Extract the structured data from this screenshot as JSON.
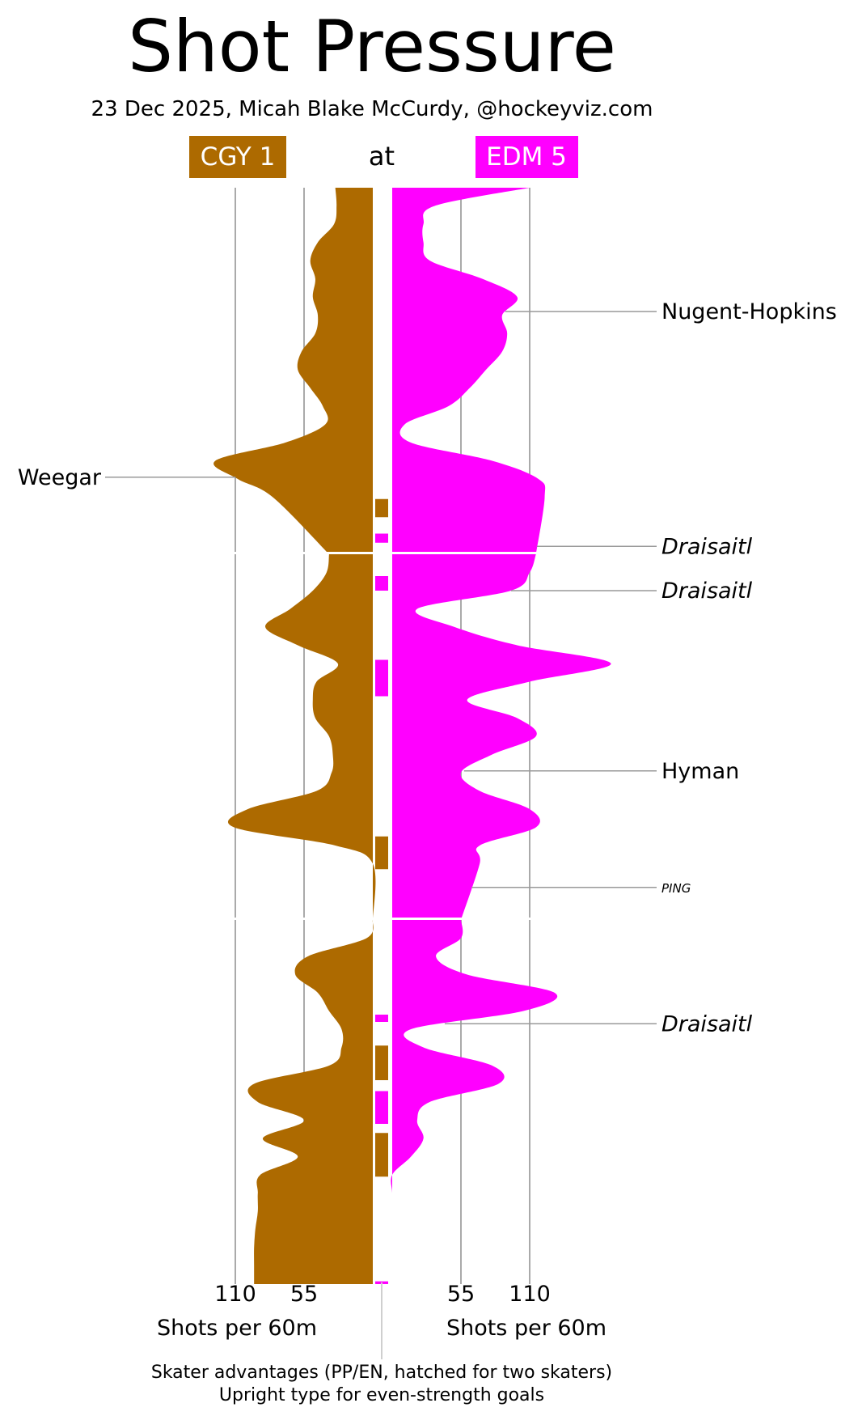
{
  "header": {
    "title": "Shot Pressure",
    "subtitle": "23 Dec 2025, Micah Blake McCurdy, @hockeyviz.com",
    "at_label": "at"
  },
  "teams": {
    "away": {
      "label": "CGY 1",
      "color": "#AD6A00"
    },
    "home": {
      "label": "EDM 5",
      "color": "#FF00FF"
    }
  },
  "footer": {
    "line1": "Skater advantages (PP/EN, hatched for two skaters)",
    "line2": "Upright type for even-strength goals"
  },
  "chart_data": {
    "type": "area",
    "orientation": "vertical time axis, mirrored (away left, home right)",
    "x_unit": "Shots per 60m",
    "xlabel_left": "Shots per 60m",
    "xlabel_right": "Shots per 60m",
    "x_ticks": [
      55,
      110
    ],
    "xlim": [
      0,
      145
    ],
    "grid": true,
    "periods": 3,
    "period_length_min": 20,
    "series": [
      {
        "name": "CGY 1",
        "side": "left",
        "color": "#AD6A00",
        "points_min_rate": [
          [
            0,
            30
          ],
          [
            1,
            29
          ],
          [
            2,
            31
          ],
          [
            3,
            44
          ],
          [
            4,
            50
          ],
          [
            5,
            46
          ],
          [
            6,
            48
          ],
          [
            7,
            44
          ],
          [
            8,
            46
          ],
          [
            9,
            57
          ],
          [
            10,
            60
          ],
          [
            11,
            50
          ],
          [
            12,
            40
          ],
          [
            13,
            38
          ],
          [
            14,
            70
          ],
          [
            15,
            126
          ],
          [
            16,
            108
          ],
          [
            17,
            80
          ],
          [
            20,
            35
          ],
          [
            21,
            37
          ],
          [
            22,
            48
          ],
          [
            23,
            66
          ],
          [
            24,
            86
          ],
          [
            25,
            60
          ],
          [
            26,
            28
          ],
          [
            27,
            45
          ],
          [
            28,
            48
          ],
          [
            29,
            46
          ],
          [
            30,
            35
          ],
          [
            31,
            32
          ],
          [
            32,
            33
          ],
          [
            33,
            45
          ],
          [
            34,
            100
          ],
          [
            35,
            111
          ],
          [
            36,
            30
          ],
          [
            37,
            0
          ],
          [
            40,
            0
          ],
          [
            41,
            5
          ],
          [
            42,
            52
          ],
          [
            43,
            62
          ],
          [
            44,
            44
          ],
          [
            45,
            35
          ],
          [
            46,
            25
          ],
          [
            47,
            25
          ],
          [
            48,
            35
          ],
          [
            49,
            95
          ],
          [
            50,
            92
          ],
          [
            51,
            55
          ],
          [
            52,
            88
          ],
          [
            53,
            60
          ],
          [
            54,
            90
          ],
          [
            55,
            92
          ],
          [
            56,
            92
          ],
          [
            57,
            94
          ],
          [
            58,
            95
          ],
          [
            59,
            95
          ],
          [
            60,
            95
          ]
        ]
      },
      {
        "name": "EDM 5",
        "side": "right",
        "color": "#FF00FF",
        "points_min_rate": [
          [
            0,
            110
          ],
          [
            1,
            34
          ],
          [
            2,
            25
          ],
          [
            3,
            25
          ],
          [
            4,
            30
          ],
          [
            5,
            72
          ],
          [
            6,
            100
          ],
          [
            7,
            88
          ],
          [
            8,
            92
          ],
          [
            9,
            88
          ],
          [
            10,
            75
          ],
          [
            11,
            62
          ],
          [
            12,
            45
          ],
          [
            13,
            10
          ],
          [
            14,
            15
          ],
          [
            15,
            80
          ],
          [
            16,
            117
          ],
          [
            17,
            122
          ],
          [
            20,
            115
          ],
          [
            21,
            110
          ],
          [
            22,
            95
          ],
          [
            23,
            20
          ],
          [
            24,
            50
          ],
          [
            25,
            100
          ],
          [
            26,
            175
          ],
          [
            27,
            110
          ],
          [
            28,
            60
          ],
          [
            29,
            100
          ],
          [
            30,
            115
          ],
          [
            31,
            80
          ],
          [
            32,
            55
          ],
          [
            33,
            70
          ],
          [
            34,
            110
          ],
          [
            35,
            115
          ],
          [
            36,
            70
          ],
          [
            37,
            70
          ],
          [
            40,
            55
          ],
          [
            41,
            55
          ],
          [
            42,
            35
          ],
          [
            43,
            60
          ],
          [
            44,
            130
          ],
          [
            45,
            105
          ],
          [
            46,
            15
          ],
          [
            47,
            25
          ],
          [
            48,
            80
          ],
          [
            49,
            85
          ],
          [
            50,
            30
          ],
          [
            51,
            20
          ],
          [
            52,
            25
          ],
          [
            53,
            15
          ],
          [
            54,
            0
          ],
          [
            55,
            0
          ],
          [
            56,
            0
          ],
          [
            57,
            0
          ],
          [
            58,
            0
          ],
          [
            59,
            0
          ],
          [
            60,
            0
          ]
        ]
      }
    ],
    "skater_advantages": [
      {
        "team": "CGY 1",
        "start": 17.1,
        "end": 18.1
      },
      {
        "team": "EDM 5",
        "start": 19.0,
        "end": 19.5
      },
      {
        "team": "EDM 5",
        "start": 21.2,
        "end": 22.0
      },
      {
        "team": "EDM 5",
        "start": 25.8,
        "end": 27.8
      },
      {
        "team": "CGY 1",
        "start": 35.5,
        "end": 37.3
      },
      {
        "team": "EDM 5",
        "start": 45.2,
        "end": 45.6
      },
      {
        "team": "CGY 1",
        "start": 46.9,
        "end": 48.8
      },
      {
        "team": "EDM 5",
        "start": 49.4,
        "end": 51.2
      },
      {
        "team": "CGY 1",
        "start": 51.7,
        "end": 54.1
      },
      {
        "team": "EDM 5",
        "start": 59.85,
        "end": 60.0
      }
    ],
    "goals": [
      {
        "scorer": "Nugent-Hopkins",
        "team": "EDM 5",
        "minute": 6.8,
        "even_strength": true
      },
      {
        "scorer": "Weegar",
        "team": "CGY 1",
        "minute": 15.9,
        "even_strength": true
      },
      {
        "scorer": "Draisaitl",
        "team": "EDM 5",
        "minute": 19.7,
        "even_strength": false
      },
      {
        "scorer": "Draisaitl",
        "team": "EDM 5",
        "minute": 22.0,
        "even_strength": false
      },
      {
        "scorer": "Hyman",
        "team": "EDM 5",
        "minute": 31.9,
        "even_strength": true
      },
      {
        "scorer": "PING",
        "team": "EDM 5",
        "minute": 38.3,
        "even_strength": false,
        "small": true
      },
      {
        "scorer": "Draisaitl",
        "team": "EDM 5",
        "minute": 45.7,
        "even_strength": false
      }
    ]
  }
}
